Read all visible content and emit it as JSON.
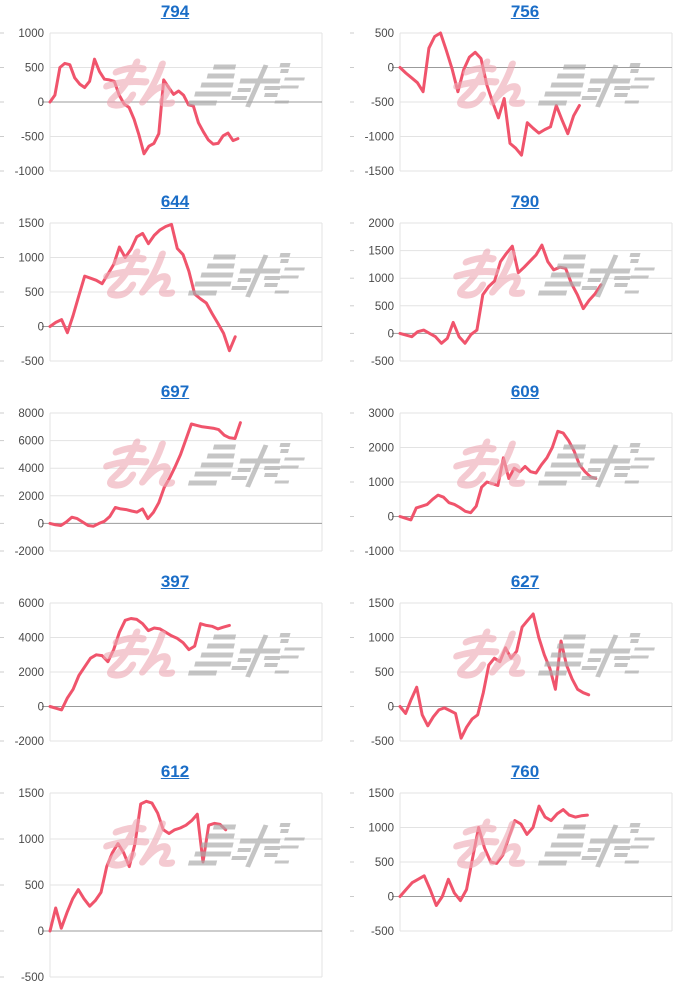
{
  "page": {
    "background": "#ffffff",
    "description": "Grid of 10 pachislot machine daily slump graphs, each titled with its machine number link"
  },
  "styles": {
    "line_color": "#f0546c",
    "title_link_color": "#1a6dc7",
    "grid_color": "#e3e3e3",
    "zero_line_color": "#9b9b9b",
    "tick_label_color": "#4a4a4a",
    "edge_tick_color": "#cccccc",
    "watermark_pink": "#eeaab4",
    "watermark_gray": "#aaaaaa"
  },
  "watermark": {
    "name": "minrepo-logo",
    "pink_text": "みん",
    "gray_text": "レポ"
  },
  "chart_data": [
    {
      "type": "line",
      "title": "794",
      "ylim": [
        -1000,
        1000
      ],
      "yticks": [
        1000,
        500,
        0,
        -500,
        -1000
      ],
      "x_slots": 56,
      "grid": true,
      "values": [
        0,
        100,
        500,
        560,
        540,
        350,
        260,
        210,
        300,
        620,
        440,
        330,
        320,
        300,
        100,
        -30,
        -80,
        -250,
        -480,
        -750,
        -640,
        -600,
        -460,
        320,
        210,
        110,
        160,
        100,
        -40,
        -60,
        -300,
        -430,
        -550,
        -610,
        -600,
        -490,
        -450,
        -560,
        -530
      ]
    },
    {
      "type": "line",
      "title": "756",
      "ylim": [
        -1500,
        500
      ],
      "yticks": [
        500,
        0,
        -500,
        -1000,
        -1500
      ],
      "x_slots": 48,
      "grid": true,
      "values": [
        0,
        -80,
        -150,
        -220,
        -350,
        280,
        450,
        500,
        250,
        -20,
        -350,
        -30,
        150,
        220,
        130,
        -250,
        -500,
        -730,
        -450,
        -1100,
        -1170,
        -1270,
        -800,
        -880,
        -950,
        -900,
        -860,
        -550,
        -760,
        -960,
        -700,
        -550
      ]
    },
    {
      "type": "line",
      "title": "644",
      "ylim": [
        -500,
        1500
      ],
      "yticks": [
        1500,
        1000,
        500,
        0,
        -500
      ],
      "x_slots": 48,
      "grid": true,
      "values": [
        0,
        60,
        100,
        -90,
        160,
        450,
        730,
        700,
        670,
        620,
        760,
        900,
        1150,
        1000,
        1120,
        1300,
        1350,
        1200,
        1320,
        1400,
        1450,
        1480,
        1130,
        1040,
        800,
        470,
        400,
        340,
        190,
        50,
        -100,
        -350,
        -150
      ]
    },
    {
      "type": "line",
      "title": "790",
      "ylim": [
        -500,
        2000
      ],
      "yticks": [
        2000,
        1500,
        1000,
        500,
        0,
        -500
      ],
      "x_slots": 47,
      "grid": true,
      "values": [
        0,
        -30,
        -60,
        30,
        60,
        0,
        -60,
        -180,
        -90,
        200,
        -60,
        -180,
        -20,
        60,
        700,
        850,
        950,
        1300,
        1450,
        1580,
        1100,
        1200,
        1310,
        1420,
        1600,
        1300,
        1150,
        1200,
        1180,
        900,
        700,
        450,
        600,
        720,
        880
      ]
    },
    {
      "type": "line",
      "title": "697",
      "ylim": [
        -2000,
        8000
      ],
      "yticks": [
        8000,
        6000,
        4000,
        2000,
        0,
        -2000
      ],
      "x_slots": 51,
      "grid": true,
      "values": [
        0,
        -100,
        -150,
        100,
        450,
        350,
        100,
        -150,
        -200,
        0,
        150,
        500,
        1150,
        1050,
        1000,
        900,
        820,
        1050,
        350,
        800,
        1500,
        2600,
        3300,
        4100,
        5000,
        6100,
        7200,
        7100,
        7000,
        6950,
        6900,
        6800,
        6400,
        6200,
        6150,
        7300
      ]
    },
    {
      "type": "line",
      "title": "609",
      "ylim": [
        -1000,
        3000
      ],
      "yticks": [
        3000,
        2000,
        1000,
        0,
        -1000
      ],
      "x_slots": 51,
      "grid": true,
      "values": [
        0,
        -50,
        -100,
        250,
        300,
        350,
        500,
        620,
        560,
        400,
        350,
        260,
        150,
        110,
        300,
        850,
        1000,
        950,
        900,
        1700,
        1100,
        1400,
        1300,
        1450,
        1300,
        1260,
        1500,
        1700,
        2000,
        2470,
        2420,
        2200,
        1900,
        1500,
        1300,
        1150,
        1100
      ]
    },
    {
      "type": "line",
      "title": "397",
      "ylim": [
        -2000,
        6000
      ],
      "yticks": [
        6000,
        4000,
        2000,
        0,
        -2000
      ],
      "x_slots": 48,
      "grid": true,
      "values": [
        0,
        -100,
        -200,
        500,
        1000,
        1800,
        2300,
        2800,
        3000,
        2950,
        2600,
        3300,
        4300,
        5000,
        5100,
        5050,
        4800,
        4400,
        4550,
        4500,
        4300,
        4100,
        3950,
        3700,
        3300,
        3500,
        4800,
        4700,
        4650,
        4500,
        4600,
        4700
      ]
    },
    {
      "type": "line",
      "title": "627",
      "ylim": [
        -500,
        1500
      ],
      "yticks": [
        1500,
        1000,
        500,
        0,
        -500
      ],
      "x_slots": 50,
      "grid": true,
      "values": [
        0,
        -100,
        100,
        280,
        -120,
        -280,
        -150,
        -50,
        -20,
        -60,
        -100,
        -460,
        -300,
        -180,
        -120,
        200,
        600,
        700,
        650,
        850,
        700,
        800,
        1150,
        1250,
        1340,
        1000,
        750,
        550,
        250,
        950,
        600,
        400,
        250,
        200,
        170
      ]
    },
    {
      "type": "line",
      "title": "612",
      "ylim": [
        -500,
        1500
      ],
      "yticks": [
        1500,
        1000,
        500,
        0,
        -500
      ],
      "x_slots": 49,
      "tall": true,
      "grid": true,
      "values": [
        0,
        250,
        30,
        200,
        350,
        450,
        350,
        270,
        330,
        420,
        700,
        850,
        950,
        850,
        700,
        950,
        1380,
        1410,
        1390,
        1280,
        1100,
        1060,
        1100,
        1120,
        1150,
        1200,
        1270,
        750,
        1150,
        1170,
        1160,
        1100
      ]
    },
    {
      "type": "line",
      "title": "760",
      "ylim": [
        -500,
        1500
      ],
      "yticks": [
        1500,
        1000,
        500,
        0,
        -500
      ],
      "x_slots": 46,
      "grid": true,
      "values": [
        0,
        100,
        200,
        250,
        300,
        100,
        -130,
        0,
        250,
        50,
        -60,
        100,
        550,
        1000,
        700,
        500,
        480,
        600,
        850,
        1100,
        1050,
        900,
        1000,
        1310,
        1150,
        1100,
        1200,
        1260,
        1180,
        1150,
        1170,
        1180
      ]
    }
  ]
}
